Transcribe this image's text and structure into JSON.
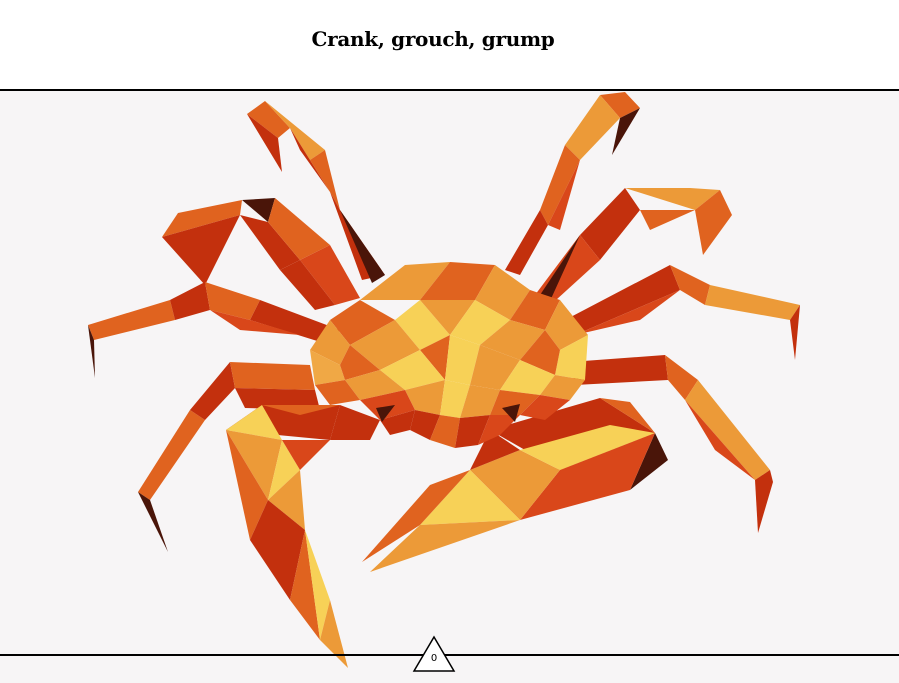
{
  "header": {
    "title": "Crank, grouch, grump"
  },
  "illustration": {
    "subject": "low-poly-crab-illustration"
  },
  "footer": {
    "counter_value": "0",
    "counter_icon": "triangle-icon"
  },
  "colors": {
    "background": "#f7f5f6",
    "header_bg": "#ffffff",
    "rule": "#000000",
    "crab_dark": "#4a1509",
    "crab_red": "#c3300d",
    "crab_orange": "#e0631f",
    "crab_amber": "#ec9a38",
    "crab_yellow": "#f7d157"
  }
}
